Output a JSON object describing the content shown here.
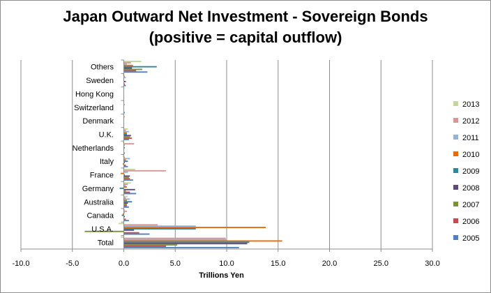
{
  "chart_data": {
    "type": "bar",
    "orientation": "horizontal",
    "title": "Japan Outward Net Investment - Sovereign Bonds",
    "subtitle": "(positive = capital outflow)",
    "xlabel": "Trillions Yen",
    "ylabel": "",
    "xlim": [
      -10.0,
      30.0
    ],
    "xticks": [
      "-10.0",
      "-5.0",
      "0.0",
      "5.0",
      "10.0",
      "15.0",
      "20.0",
      "25.0",
      "30.0"
    ],
    "grid": "vertical",
    "legend_position": "right",
    "categories": [
      "Others",
      "Sweden",
      "Hong Kong",
      "Switzerland",
      "Denmark",
      "U.K.",
      "Netherlands",
      "Italy",
      "France",
      "Germany",
      "Australia",
      "Canada",
      "U.S.A.",
      "Total"
    ],
    "series": [
      {
        "name": "2013",
        "color": "#c4d79b",
        "values": [
          1.7,
          -0.1,
          0.0,
          0.0,
          0.0,
          0.4,
          -0.1,
          -0.1,
          1.1,
          0.7,
          0.4,
          0.1,
          -0.5,
          -0.3
        ]
      },
      {
        "name": "2012",
        "color": "#da9694",
        "values": [
          0.7,
          0.1,
          0.0,
          0.0,
          0.1,
          0.2,
          1.0,
          0.1,
          4.1,
          0.4,
          0.2,
          0.3,
          3.3,
          9.9
        ]
      },
      {
        "name": "2011",
        "color": "#95b3d7",
        "values": [
          0.3,
          0.2,
          0.0,
          0.1,
          0.0,
          0.5,
          0.1,
          0.6,
          0.4,
          0.2,
          0.6,
          0.1,
          7.0,
          10.0
        ]
      },
      {
        "name": "2010",
        "color": "#e46c0a",
        "values": [
          0.9,
          0.0,
          0.0,
          0.0,
          0.0,
          0.3,
          0.0,
          0.2,
          -0.3,
          0.3,
          0.3,
          -0.1,
          13.8,
          15.4
        ]
      },
      {
        "name": "2009",
        "color": "#31859c",
        "values": [
          3.2,
          0.0,
          0.0,
          0.0,
          0.0,
          0.3,
          0.1,
          0.4,
          0.1,
          -0.4,
          0.8,
          -0.2,
          7.0,
          12.2
        ]
      },
      {
        "name": "2008",
        "color": "#60497a",
        "values": [
          0.8,
          0.2,
          0.0,
          0.0,
          0.0,
          0.7,
          0.0,
          0.1,
          0.6,
          1.1,
          0.4,
          0.1,
          1.0,
          12.0
        ]
      },
      {
        "name": "2007",
        "color": "#77933c",
        "values": [
          1.8,
          0.0,
          0.0,
          0.0,
          0.0,
          0.6,
          0.0,
          -0.1,
          0.5,
          0.2,
          0.3,
          0.0,
          -3.8,
          5.2
        ]
      },
      {
        "name": "2006",
        "color": "#c0504d",
        "values": [
          1.2,
          0.1,
          0.0,
          0.0,
          0.0,
          0.8,
          0.0,
          0.2,
          0.6,
          0.6,
          0.3,
          0.2,
          1.5,
          4.1
        ]
      },
      {
        "name": "2005",
        "color": "#4f81bd",
        "values": [
          2.3,
          0.2,
          0.0,
          0.1,
          0.0,
          0.5,
          0.1,
          0.4,
          0.9,
          1.2,
          0.5,
          0.5,
          2.5,
          11.2
        ]
      }
    ]
  }
}
